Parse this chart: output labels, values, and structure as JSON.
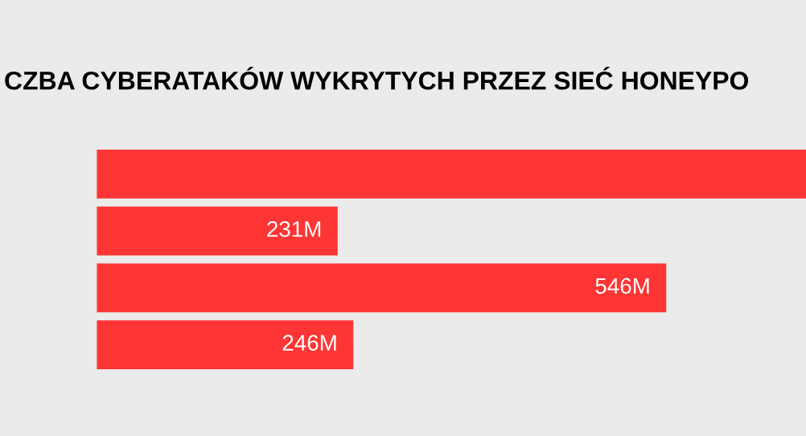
{
  "chart_data": {
    "type": "bar",
    "orientation": "horizontal",
    "title": "CZBA CYBERATAKÓW WYKRYTYCH PRZEZ SIEĆ HONEYPO",
    "categories": [
      null,
      null,
      null,
      null
    ],
    "values": [
      680,
      231,
      546,
      246
    ],
    "value_labels": [
      null,
      "231M",
      "546M",
      "246M"
    ],
    "color": "#fd3535",
    "xlim": [
      0,
      680
    ],
    "tick_labels": false
  }
}
